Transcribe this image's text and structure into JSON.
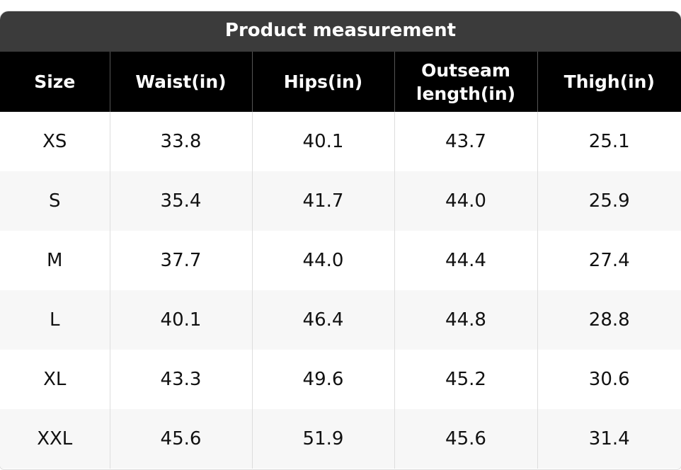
{
  "title": "Product measurement",
  "table": {
    "header": [
      "Size",
      "Waist(in)",
      "Hips(in)",
      "Outseam length(in)",
      "Thigh(in)"
    ],
    "rows": [
      [
        "XS",
        "33.8",
        "40.1",
        "43.7",
        "25.1"
      ],
      [
        "S",
        "35.4",
        "41.7",
        "44.0",
        "25.9"
      ],
      [
        "M",
        "37.7",
        "44.0",
        "44.4",
        "27.4"
      ],
      [
        "L",
        "40.1",
        "46.4",
        "44.8",
        "28.8"
      ],
      [
        "XL",
        "43.3",
        "49.6",
        "45.2",
        "30.6"
      ],
      [
        "XXL",
        "45.6",
        "51.9",
        "45.6",
        "31.4"
      ]
    ]
  }
}
